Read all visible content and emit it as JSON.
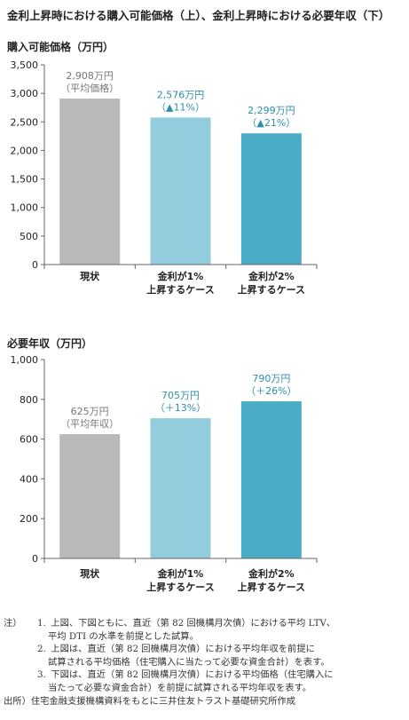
{
  "page_title": "金利上昇時における購入可能価格（上）、金利上昇時における必要年収（下）",
  "colors": {
    "bar1": "#b9b9b9",
    "bar2": "#93cddd",
    "bar3": "#4aacc6",
    "label_gray": "#777777",
    "label_teal": "#2d8faa"
  },
  "chart_data": [
    {
      "type": "bar",
      "title": "購入可能価格（万円）",
      "categories": [
        [
          "現状"
        ],
        [
          "金利が1%",
          "上昇するケース"
        ],
        [
          "金利が2%",
          "上昇するケース"
        ]
      ],
      "values": [
        2908,
        2576,
        2299
      ],
      "data_labels": [
        [
          "2,908万円",
          "（平均価格）"
        ],
        [
          "2,576万円",
          "（▲11%）"
        ],
        [
          "2,299万円",
          "（▲21%）"
        ]
      ],
      "ylim": [
        0,
        3500
      ],
      "yticks": [
        "0",
        "500",
        "1,000",
        "1,500",
        "2,000",
        "2,500",
        "3,000",
        "3,500"
      ],
      "grid": false
    },
    {
      "type": "bar",
      "title": "必要年収（万円）",
      "categories": [
        [
          "現状"
        ],
        [
          "金利が1%",
          "上昇するケース"
        ],
        [
          "金利が2%",
          "上昇するケース"
        ]
      ],
      "values": [
        625,
        705,
        790
      ],
      "data_labels": [
        [
          "625万円",
          "（平均年収）"
        ],
        [
          "705万円",
          "（＋13%）"
        ],
        [
          "790万円",
          "（＋26%）"
        ]
      ],
      "ylim": [
        0,
        1000
      ],
      "yticks": [
        "0",
        "200",
        "400",
        "600",
        "800",
        "1,000"
      ],
      "grid": false
    }
  ],
  "notes": {
    "prefix": "注）",
    "items": [
      {
        "num": "1.",
        "lines": [
          "上図、下図ともに、直近（第 82 回機構月次債）における平均 LTV、",
          "平均 DTI の水準を前提とした試算。"
        ]
      },
      {
        "num": "2.",
        "lines": [
          "上図は、直近（第 82 回機構月次債）における平均年収を前提に",
          "試算される平均価格（住宅購入に当たって必要な資金合計）を表す。"
        ]
      },
      {
        "num": "3.",
        "lines": [
          "下図は、直近（第 82 回機構月次債）における平均価格（住宅購入に",
          "当たって必要な資金合計）を前提に試算される平均年収を表す。"
        ]
      }
    ],
    "source": "出所）住宅金融支援機構資料をもとに三井住友トラスト基礎研究所作成"
  }
}
